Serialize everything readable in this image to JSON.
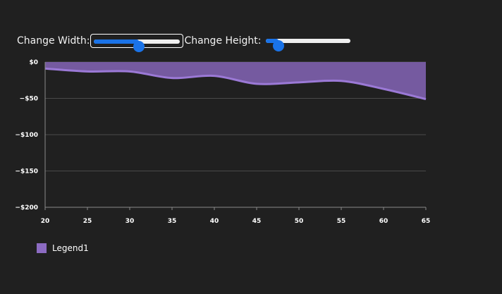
{
  "controls": {
    "width_label": "Change Width:",
    "height_label": "Change Height:",
    "width_value": 0.52,
    "height_value": 0.15
  },
  "chart_data": {
    "type": "area",
    "x": [
      20,
      25,
      30,
      35,
      40,
      45,
      50,
      55,
      60,
      65
    ],
    "series": [
      {
        "name": "Legend1",
        "values": [
          -9,
          -13,
          -13,
          -22,
          -19,
          -30,
          -28,
          -26,
          -37,
          -51
        ]
      }
    ],
    "xlim": [
      20,
      65
    ],
    "ylim": [
      -200,
      0
    ],
    "xticks": [
      "20",
      "25",
      "30",
      "35",
      "40",
      "45",
      "50",
      "55",
      "60",
      "65"
    ],
    "yticks": [
      {
        "value": 0,
        "label": "$0"
      },
      {
        "value": -50,
        "label": "−$50"
      },
      {
        "value": -100,
        "label": "−$100"
      },
      {
        "value": -150,
        "label": "−$150"
      },
      {
        "value": -200,
        "label": "−$200"
      }
    ],
    "grid": true,
    "legend_position": "bottom-left",
    "fill_color": "#7a5ea8",
    "line_color": "#9b79d6",
    "grid_color": "#4a4a4a",
    "legend_color": "#8c6bc2"
  }
}
